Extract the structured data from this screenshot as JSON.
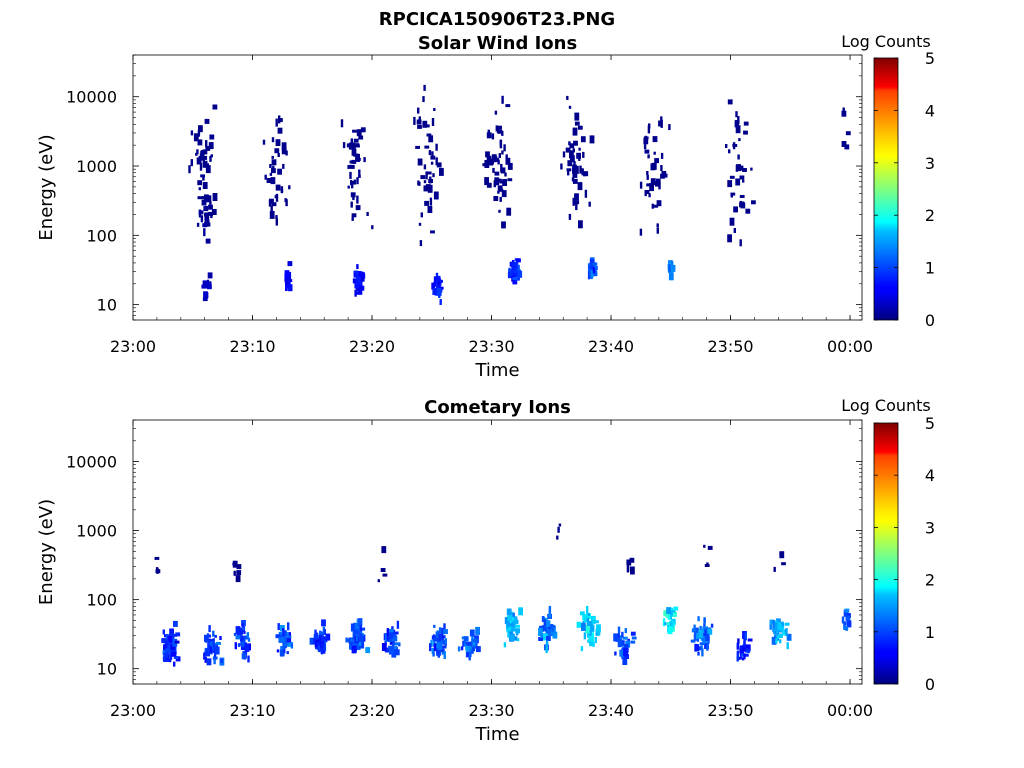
{
  "figure": {
    "title": "RPCICA150906T23.PNG"
  },
  "chart_data": [
    {
      "type": "heatmap",
      "title": "Solar Wind Ions",
      "xlabel": "Time",
      "ylabel": "Energy (eV)",
      "x_ticks": [
        "23:00",
        "23:10",
        "23:20",
        "23:30",
        "23:40",
        "23:50",
        "00:00"
      ],
      "x_range_minutes": [
        0,
        61
      ],
      "y_ticks": [
        "10",
        "100",
        "1000",
        "10000"
      ],
      "y_tick_values": [
        10,
        100,
        1000,
        10000
      ],
      "y_scale": "log",
      "y_range": [
        6,
        40000
      ],
      "colorbar": {
        "label": "Log Counts",
        "ticks": [
          "0",
          "1",
          "2",
          "3",
          "4",
          "5"
        ],
        "range": [
          0,
          5
        ],
        "colormap": "jet"
      },
      "clusters": [
        {
          "t": 5.8,
          "e": 800,
          "spread_t": 1.6,
          "spread_e": 1.4,
          "n": 50,
          "v": 0.05,
          "vs": 0.05
        },
        {
          "t": 5.8,
          "e": 150,
          "spread_t": 0.8,
          "spread_e": 0.4,
          "n": 12,
          "v": 0.1,
          "vs": 0.1
        },
        {
          "t": 6.0,
          "e": 20,
          "spread_t": 0.6,
          "spread_e": 0.4,
          "n": 10,
          "v": 0.3,
          "vs": 0.2
        },
        {
          "t": 12.0,
          "e": 900,
          "spread_t": 1.4,
          "spread_e": 1.3,
          "n": 40,
          "v": 0.05,
          "vs": 0.05
        },
        {
          "t": 12.8,
          "e": 25,
          "spread_t": 0.4,
          "spread_e": 0.25,
          "n": 12,
          "v": 0.6,
          "vs": 0.3
        },
        {
          "t": 18.5,
          "e": 900,
          "spread_t": 1.6,
          "spread_e": 1.3,
          "n": 45,
          "v": 0.05,
          "vs": 0.05
        },
        {
          "t": 18.7,
          "e": 22,
          "spread_t": 0.6,
          "spread_e": 0.3,
          "n": 30,
          "v": 0.6,
          "vs": 0.3
        },
        {
          "t": 24.5,
          "e": 1000,
          "spread_t": 1.8,
          "spread_e": 1.3,
          "n": 45,
          "v": 0.05,
          "vs": 0.05
        },
        {
          "t": 25.4,
          "e": 18,
          "spread_t": 0.5,
          "spread_e": 0.3,
          "n": 28,
          "v": 0.7,
          "vs": 0.3
        },
        {
          "t": 30.5,
          "e": 1100,
          "spread_t": 1.8,
          "spread_e": 1.3,
          "n": 55,
          "v": 0.05,
          "vs": 0.05
        },
        {
          "t": 31.8,
          "e": 30,
          "spread_t": 0.6,
          "spread_e": 0.2,
          "n": 30,
          "v": 0.8,
          "vs": 0.4
        },
        {
          "t": 37.0,
          "e": 1000,
          "spread_t": 1.6,
          "spread_e": 1.3,
          "n": 45,
          "v": 0.05,
          "vs": 0.05
        },
        {
          "t": 38.3,
          "e": 32,
          "spread_t": 0.6,
          "spread_e": 0.2,
          "n": 25,
          "v": 1.0,
          "vs": 0.5
        },
        {
          "t": 43.5,
          "e": 800,
          "spread_t": 1.4,
          "spread_e": 1.3,
          "n": 40,
          "v": 0.05,
          "vs": 0.05
        },
        {
          "t": 44.8,
          "e": 32,
          "spread_t": 0.3,
          "spread_e": 0.2,
          "n": 12,
          "v": 1.3,
          "vs": 0.4
        },
        {
          "t": 50.5,
          "e": 900,
          "spread_t": 1.6,
          "spread_e": 1.3,
          "n": 40,
          "v": 0.05,
          "vs": 0.05
        },
        {
          "t": 59.5,
          "e": 3000,
          "spread_t": 0.5,
          "spread_e": 0.6,
          "n": 5,
          "v": 0.05,
          "vs": 0.05
        }
      ]
    },
    {
      "type": "heatmap",
      "title": "Cometary Ions",
      "xlabel": "Time",
      "ylabel": "Energy (eV)",
      "x_ticks": [
        "23:00",
        "23:10",
        "23:20",
        "23:30",
        "23:40",
        "23:50",
        "00:00"
      ],
      "x_range_minutes": [
        0,
        61
      ],
      "y_ticks": [
        "10",
        "100",
        "1000",
        "10000"
      ],
      "y_tick_values": [
        10,
        100,
        1000,
        10000
      ],
      "y_scale": "log",
      "y_range": [
        6,
        40000
      ],
      "colorbar": {
        "label": "Log Counts",
        "ticks": [
          "0",
          "1",
          "2",
          "3",
          "4",
          "5"
        ],
        "range": [
          0,
          5
        ],
        "colormap": "jet"
      },
      "clusters": [
        {
          "t": 2.0,
          "e": 200,
          "spread_t": 0.6,
          "spread_e": 0.5,
          "n": 4,
          "v": 0.05,
          "vs": 0.05
        },
        {
          "t": 3.0,
          "e": 22,
          "spread_t": 1.0,
          "spread_e": 0.35,
          "n": 45,
          "v": 0.8,
          "vs": 0.5
        },
        {
          "t": 6.5,
          "e": 20,
          "spread_t": 1.0,
          "spread_e": 0.35,
          "n": 45,
          "v": 0.9,
          "vs": 0.5
        },
        {
          "t": 8.5,
          "e": 300,
          "spread_t": 0.5,
          "spread_e": 0.4,
          "n": 6,
          "v": 0.05,
          "vs": 0.05
        },
        {
          "t": 9.0,
          "e": 25,
          "spread_t": 0.8,
          "spread_e": 0.35,
          "n": 40,
          "v": 0.9,
          "vs": 0.5
        },
        {
          "t": 12.5,
          "e": 25,
          "spread_t": 1.0,
          "spread_e": 0.3,
          "n": 35,
          "v": 1.0,
          "vs": 0.5
        },
        {
          "t": 15.5,
          "e": 25,
          "spread_t": 1.0,
          "spread_e": 0.3,
          "n": 35,
          "v": 0.9,
          "vs": 0.5
        },
        {
          "t": 18.5,
          "e": 28,
          "spread_t": 1.0,
          "spread_e": 0.3,
          "n": 45,
          "v": 1.0,
          "vs": 0.5
        },
        {
          "t": 21.5,
          "e": 25,
          "spread_t": 1.0,
          "spread_e": 0.3,
          "n": 40,
          "v": 0.9,
          "vs": 0.5
        },
        {
          "t": 20.5,
          "e": 250,
          "spread_t": 0.6,
          "spread_e": 0.4,
          "n": 4,
          "v": 0.05,
          "vs": 0.05
        },
        {
          "t": 25.5,
          "e": 25,
          "spread_t": 1.0,
          "spread_e": 0.3,
          "n": 40,
          "v": 1.0,
          "vs": 0.5
        },
        {
          "t": 28.0,
          "e": 22,
          "spread_t": 1.0,
          "spread_e": 0.3,
          "n": 35,
          "v": 1.1,
          "vs": 0.5
        },
        {
          "t": 31.5,
          "e": 40,
          "spread_t": 1.0,
          "spread_e": 0.35,
          "n": 45,
          "v": 1.5,
          "vs": 0.6
        },
        {
          "t": 34.5,
          "e": 35,
          "spread_t": 0.8,
          "spread_e": 0.35,
          "n": 40,
          "v": 1.2,
          "vs": 0.6
        },
        {
          "t": 35.5,
          "e": 900,
          "spread_t": 0.3,
          "spread_e": 0.3,
          "n": 3,
          "v": 0.05,
          "vs": 0.05
        },
        {
          "t": 38.0,
          "e": 40,
          "spread_t": 1.0,
          "spread_e": 0.35,
          "n": 50,
          "v": 1.6,
          "vs": 0.6
        },
        {
          "t": 41.0,
          "e": 25,
          "spread_t": 1.0,
          "spread_e": 0.35,
          "n": 30,
          "v": 1.0,
          "vs": 0.5
        },
        {
          "t": 41.5,
          "e": 350,
          "spread_t": 0.5,
          "spread_e": 0.4,
          "n": 5,
          "v": 0.05,
          "vs": 0.05
        },
        {
          "t": 44.8,
          "e": 50,
          "spread_t": 0.6,
          "spread_e": 0.35,
          "n": 25,
          "v": 1.8,
          "vs": 0.6
        },
        {
          "t": 47.5,
          "e": 30,
          "spread_t": 1.0,
          "spread_e": 0.35,
          "n": 45,
          "v": 1.1,
          "vs": 0.6
        },
        {
          "t": 48.0,
          "e": 400,
          "spread_t": 0.5,
          "spread_e": 0.4,
          "n": 4,
          "v": 0.05,
          "vs": 0.05
        },
        {
          "t": 51.0,
          "e": 20,
          "spread_t": 0.8,
          "spread_e": 0.3,
          "n": 30,
          "v": 0.8,
          "vs": 0.5
        },
        {
          "t": 54.0,
          "e": 35,
          "spread_t": 1.0,
          "spread_e": 0.3,
          "n": 40,
          "v": 1.4,
          "vs": 0.6
        },
        {
          "t": 54.0,
          "e": 300,
          "spread_t": 0.5,
          "spread_e": 0.4,
          "n": 4,
          "v": 0.05,
          "vs": 0.05
        },
        {
          "t": 59.5,
          "e": 45,
          "spread_t": 0.3,
          "spread_e": 0.25,
          "n": 10,
          "v": 1.0,
          "vs": 0.5
        }
      ]
    }
  ]
}
